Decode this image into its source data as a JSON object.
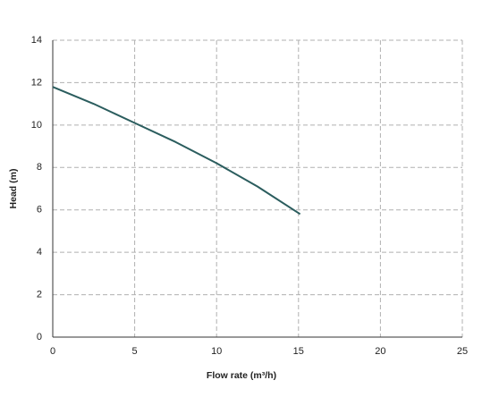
{
  "chart_data": {
    "type": "line",
    "x_label": "Flow rate (m³/h)",
    "y_label": "Head (m)",
    "x": [
      0,
      2.5,
      5,
      7.5,
      10,
      12.5,
      15.1
    ],
    "series": [
      {
        "color": "#2b5d5e",
        "values": [
          11.8,
          11.0,
          10.1,
          9.2,
          8.2,
          7.1,
          5.8
        ]
      }
    ],
    "xlim": [
      0,
      25
    ],
    "xticks": [
      0,
      5,
      10,
      15,
      20,
      25
    ],
    "ylim": [
      0,
      14
    ],
    "yticks": [
      0,
      2,
      4,
      6,
      8,
      10,
      12,
      14
    ],
    "grid": true
  }
}
